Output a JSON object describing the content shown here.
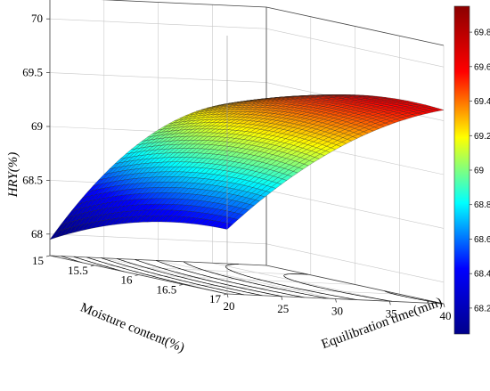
{
  "chart_data": {
    "type": "surface3d",
    "zlabel": "HRY(%)",
    "xlabel": "Equilibration time(min)",
    "ylabel": "Moisture content(%)",
    "x_ticks": [
      "20",
      "25",
      "30",
      "35",
      "40"
    ],
    "y_ticks": [
      "15",
      "15.5",
      "16",
      "16.5",
      "17"
    ],
    "z_ticks": [
      "68",
      "68.5",
      "69",
      "69.5",
      "70"
    ],
    "xlim": [
      20,
      40
    ],
    "ylim": [
      15,
      17
    ],
    "zlim": [
      67.8,
      70.2
    ],
    "colorbar_ticks": [
      "68.2",
      "68.4",
      "68.6",
      "68.8",
      "69",
      "69.2",
      "69.4",
      "69.6",
      "69.8"
    ],
    "colorbar_range": [
      68.05,
      69.95
    ],
    "colormap": [
      "#00008b",
      "#0000ff",
      "#00ffff",
      "#ffff00",
      "#ff0000",
      "#8b0000"
    ],
    "surface_samples": [
      {
        "x": 20,
        "y": 15,
        "z": 67.95
      },
      {
        "x": 20,
        "y": 17,
        "z": 68.4
      },
      {
        "x": 40,
        "y": 15,
        "z": 69.3
      },
      {
        "x": 40,
        "y": 17,
        "z": 69.85
      },
      {
        "x": 20,
        "y": 16.2,
        "z": 68.7
      },
      {
        "x": 25,
        "y": 17,
        "z": 68.1
      },
      {
        "x": 35,
        "y": 16.5,
        "z": 69.9
      }
    ],
    "grid": true,
    "contours_on_floor": true
  }
}
